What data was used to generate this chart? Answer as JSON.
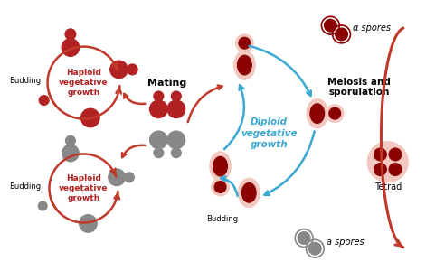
{
  "bg_color": "#ffffff",
  "red_color": "#b22222",
  "dark_red": "#8b0000",
  "gray_color": "#888888",
  "light_gray": "#cccccc",
  "pink_color": "#f2c8c0",
  "blue_color": "#3aa8d0",
  "arrow_red": "#c0392b",
  "arrow_blue": "#3aa8d0",
  "labels": {
    "alpha_spores_top": "α spores",
    "alpha_spores_bottom": "a spores",
    "mating": "Mating",
    "meiosis": "Meiosis and\nsporulation",
    "tetrad": "Tetrad",
    "haploid_top": "Haploid\nvegetative\ngrowth",
    "haploid_bottom": "Haploid\nvegetative\ngrowth",
    "diploid": "Diploid\nvegetative\ngrowth",
    "budding_top": "Budding",
    "budding_bottom_left": "Budding",
    "budding_center": "Budding"
  }
}
